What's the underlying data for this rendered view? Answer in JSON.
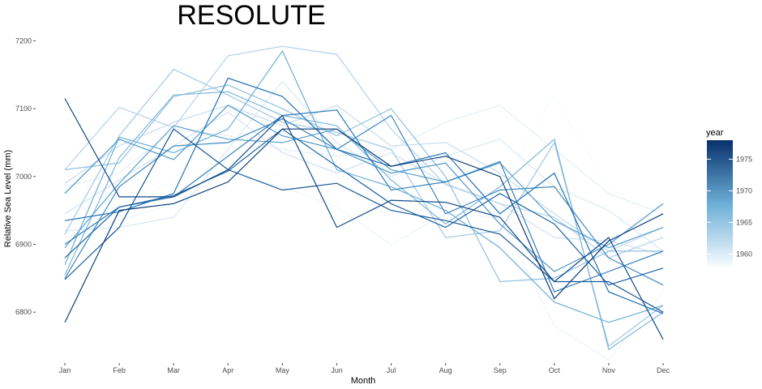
{
  "chart_data": {
    "type": "line",
    "title": "RESOLUTE",
    "xlabel": "Month",
    "ylabel": "Relative Sea Level (mm)",
    "categories": [
      "Jan",
      "Feb",
      "Mar",
      "Apr",
      "May",
      "Jun",
      "Jul",
      "Aug",
      "Sep",
      "Oct",
      "Nov",
      "Dec"
    ],
    "yticks": [
      6800,
      6900,
      7000,
      7100,
      7200
    ],
    "ylim": [
      6725,
      7210
    ],
    "grid": false,
    "legend": {
      "title": "year",
      "position": "right",
      "type": "colorbar",
      "ticks": [
        1960,
        1965,
        1970,
        1975
      ],
      "range": [
        1958,
        1978
      ],
      "low_color": "#f7fbff",
      "high_color": "#08306b"
    },
    "series": [
      {
        "year": 1958,
        "values": [
          6920,
          6960,
          6990,
          7010,
          7000,
          6990,
          6940,
          6960,
          6980,
          7120,
          6980,
          6950
        ]
      },
      {
        "year": 1959,
        "values": [
          6910,
          6935,
          6960,
          7005,
          6985,
          6955,
          6900,
          6945,
          6940,
          6780,
          6730,
          6830
        ]
      },
      {
        "year": 1960,
        "values": [
          6985,
          7005,
          7070,
          7060,
          7040,
          7030,
          7040,
          7080,
          7105,
          7040,
          6975,
          6945
        ]
      },
      {
        "year": 1961,
        "values": [
          6920,
          6925,
          6940,
          7040,
          7140,
          7050,
          7000,
          7030,
          7055,
          6985,
          6950,
          6890
        ]
      },
      {
        "year": 1962,
        "values": [
          6945,
          6995,
          7045,
          7095,
          7035,
          7005,
          7035,
          6990,
          6960,
          6910,
          6905,
          6885
        ]
      },
      {
        "year": 1963,
        "values": [
          6990,
          7045,
          7080,
          7105,
          7075,
          7105,
          7045,
          7050,
          7005,
          6945,
          6890,
          6925
        ]
      },
      {
        "year": 1964,
        "values": [
          7010,
          7102,
          7072,
          7178,
          7192,
          7180,
          7070,
          6988,
          6960,
          6940,
          6880,
          6910
        ]
      },
      {
        "year": 1965,
        "values": [
          6915,
          7060,
          7158,
          7120,
          7080,
          7065,
          7040,
          6910,
          6920,
          7050,
          6750,
          6810
        ]
      },
      {
        "year": 1966,
        "values": [
          7010,
          7020,
          7118,
          7135,
          7100,
          7060,
          7100,
          7000,
          6845,
          6850,
          6890,
          6890
        ]
      },
      {
        "year": 1967,
        "values": [
          6855,
          7028,
          7120,
          7125,
          7090,
          7075,
          6995,
          6930,
          6985,
          7055,
          6745,
          6800
        ]
      },
      {
        "year": 1968,
        "values": [
          6870,
          7058,
          7035,
          7070,
          7185,
          7010,
          6985,
          6950,
          6895,
          6815,
          6785,
          6810
        ]
      },
      {
        "year": 1969,
        "values": [
          6895,
          6990,
          7075,
          7055,
          7050,
          7070,
          7010,
          6992,
          7020,
          6935,
          6895,
          6925
        ]
      },
      {
        "year": 1970,
        "values": [
          6975,
          7055,
          7025,
          7105,
          7060,
          7040,
          7005,
          7020,
          6930,
          6860,
          6900,
          6960
        ]
      },
      {
        "year": 1971,
        "values": [
          6850,
          6985,
          7045,
          7050,
          7085,
          7040,
          7090,
          6945,
          6980,
          6985,
          6880,
          6840
        ]
      },
      {
        "year": 1972,
        "values": [
          6900,
          6955,
          6970,
          7030,
          7090,
          7098,
          6980,
          6992,
          7022,
          6830,
          6860,
          6890
        ]
      },
      {
        "year": 1973,
        "values": [
          6935,
          6948,
          6975,
          7145,
          7118,
          7040,
          7015,
          7035,
          6945,
          7005,
          6830,
          6798
        ]
      },
      {
        "year": 1974,
        "values": [
          6880,
          6955,
          6972,
          7008,
          7070,
          7015,
          6960,
          6925,
          6975,
          6930,
          6840,
          6865
        ]
      },
      {
        "year": 1975,
        "values": [
          6848,
          6925,
          7070,
          7010,
          6980,
          6990,
          6950,
          6935,
          6915,
          6845,
          6845,
          6800
        ]
      },
      {
        "year": 1976,
        "values": [
          7115,
          6970,
          6970,
          7010,
          7090,
          6925,
          6965,
          6962,
          6940,
          6845,
          6910,
          6760
        ]
      },
      {
        "year": 1977,
        "values": [
          6785,
          6950,
          6960,
          6992,
          7070,
          7070,
          7015,
          7030,
          7000,
          6820,
          6905,
          6945
        ]
      }
    ]
  }
}
